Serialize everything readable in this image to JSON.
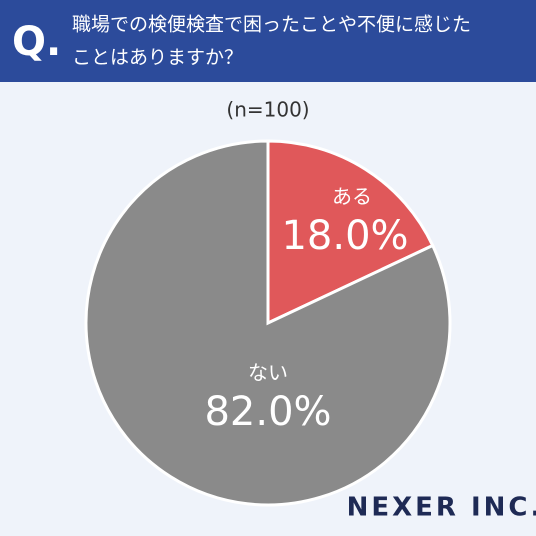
{
  "chart_data": {
    "type": "pie",
    "badge": "Q.",
    "title": [
      "職場での検便検査で困ったことや不便に感じた",
      "ことはありますか？"
    ],
    "subtitle": "(n=100)",
    "categories": [
      "ある",
      "ない"
    ],
    "values": [
      18,
      82
    ],
    "value_labels": [
      "18.0%",
      "82.0%"
    ],
    "colors": [
      "#e0585a",
      "#8a8a8a"
    ],
    "brand": "NEXER INC."
  }
}
